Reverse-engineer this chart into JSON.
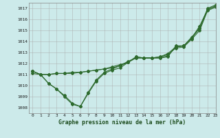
{
  "title": "Graphe pression niveau de la mer (hPa)",
  "bg_color": "#cceaea",
  "grid_color": "#aaaaaa",
  "line_color": "#2d6a2d",
  "xlim": [
    -0.5,
    23
  ],
  "ylim": [
    1007.5,
    1017.5
  ],
  "yticks": [
    1008,
    1009,
    1010,
    1011,
    1012,
    1013,
    1014,
    1015,
    1016,
    1017
  ],
  "xticks": [
    0,
    1,
    2,
    3,
    4,
    5,
    6,
    7,
    8,
    9,
    10,
    11,
    12,
    13,
    14,
    15,
    16,
    17,
    18,
    19,
    20,
    21,
    22,
    23
  ],
  "line1": {
    "x": [
      0,
      1,
      2,
      3,
      4,
      5,
      6,
      7,
      8,
      9,
      10,
      11,
      12,
      13,
      14,
      15,
      16,
      17,
      18,
      19,
      20,
      21,
      22,
      23
    ],
    "y": [
      1011.3,
      1011.0,
      1010.2,
      1009.7,
      1009.0,
      1008.3,
      1008.1,
      1009.3,
      1010.4,
      1011.1,
      1011.4,
      1011.6,
      1012.1,
      1012.6,
      1012.5,
      1012.5,
      1012.5,
      1012.6,
      1013.6,
      1013.6,
      1014.3,
      1015.2,
      1016.9,
      1017.2
    ]
  },
  "line2": {
    "x": [
      0,
      1,
      2,
      3,
      4,
      5,
      6,
      7,
      8,
      9,
      10,
      11,
      12,
      13,
      14,
      15,
      16,
      17,
      18,
      19,
      20,
      21,
      22,
      23
    ],
    "y": [
      1011.1,
      1011.0,
      1010.2,
      1009.7,
      1009.1,
      1008.4,
      1008.1,
      1009.4,
      1010.5,
      1011.2,
      1011.5,
      1011.8,
      1012.2,
      1012.5,
      1012.5,
      1012.5,
      1012.5,
      1012.7,
      1013.5,
      1013.6,
      1014.3,
      1015.4,
      1016.9,
      1017.2
    ]
  },
  "line3": {
    "x": [
      0,
      1,
      2,
      3,
      4,
      5,
      6,
      7,
      8,
      9,
      10,
      11,
      12,
      13,
      14,
      15,
      16,
      17,
      18,
      19,
      20,
      21,
      22,
      23
    ],
    "y": [
      1011.3,
      1011.0,
      1011.0,
      1011.1,
      1011.1,
      1011.1,
      1011.2,
      1011.3,
      1011.4,
      1011.5,
      1011.6,
      1011.8,
      1012.1,
      1012.5,
      1012.5,
      1012.5,
      1012.6,
      1012.8,
      1013.4,
      1013.5,
      1014.2,
      1015.0,
      1016.8,
      1017.1
    ]
  },
  "line4": {
    "x": [
      0,
      1,
      2,
      3,
      4,
      5,
      6,
      7,
      8,
      9,
      10,
      11,
      12,
      13,
      14,
      15,
      16,
      17,
      18,
      19,
      20,
      21,
      22,
      23
    ],
    "y": [
      1011.3,
      1011.0,
      1011.0,
      1011.1,
      1011.1,
      1011.2,
      1011.2,
      1011.3,
      1011.4,
      1011.5,
      1011.7,
      1011.9,
      1012.1,
      1012.6,
      1012.5,
      1012.5,
      1012.6,
      1012.9,
      1013.5,
      1013.6,
      1014.4,
      1015.2,
      1017.0,
      1017.3
    ]
  }
}
